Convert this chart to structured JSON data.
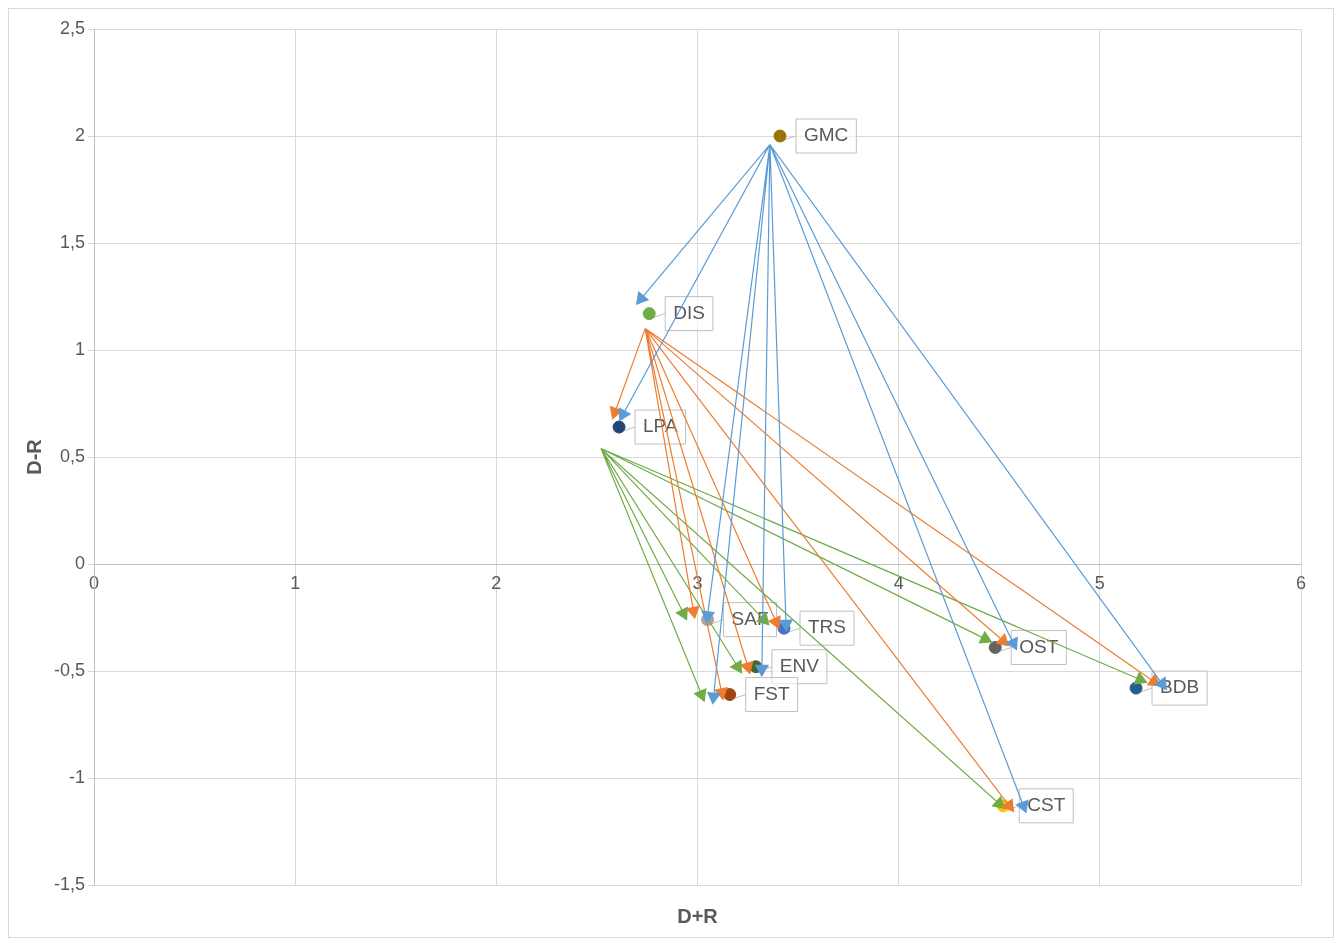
{
  "chart_data": {
    "type": "scatter",
    "xlabel": "D+R",
    "ylabel": "D-R",
    "xlim": [
      0,
      6
    ],
    "xticks": [
      0,
      1,
      2,
      3,
      4,
      5,
      6
    ],
    "ylim": [
      -1.5,
      2.5
    ],
    "yticks": [
      {
        "value": -1.5,
        "label": "-1,5"
      },
      -1,
      {
        "value": -0.5,
        "label": "-0,5"
      },
      0,
      {
        "value": 0.5,
        "label": "0,5"
      },
      1,
      {
        "value": 1.5,
        "label": "1,5"
      },
      2,
      {
        "value": 2.5,
        "label": "2,5"
      }
    ],
    "grid": true,
    "legend": false,
    "series": [
      {
        "type": "scatter",
        "marker": "circle",
        "x": [
          3.41,
          2.76,
          2.61,
          3.05,
          3.43,
          3.29,
          3.16,
          4.48,
          5.18,
          4.52
        ],
        "values": [
          2.0,
          1.17,
          0.64,
          -0.26,
          -0.3,
          -0.48,
          -0.61,
          -0.39,
          -0.58,
          -1.13
        ],
        "colors": [
          "#997300",
          "#70ad47",
          "#264478",
          "#a5a5a5",
          "#4472c4",
          "#43682b",
          "#9e480e",
          "#636363",
          "#255e91",
          "#ffc000"
        ]
      },
      {
        "type": "line",
        "marker": "triangle",
        "color": "#5b9bd5",
        "x": [
          3.36,
          2.72,
          null,
          3.36,
          2.63,
          null,
          3.36,
          3.05,
          null,
          3.36,
          3.44,
          null,
          3.36,
          3.32,
          null,
          3.36,
          3.08,
          null,
          3.36,
          4.57,
          null,
          3.36,
          5.31,
          null,
          3.36,
          4.62
        ],
        "values": [
          1.96,
          1.24,
          null,
          1.96,
          0.7,
          null,
          1.96,
          -0.24,
          null,
          1.96,
          -0.28,
          null,
          1.96,
          -0.49,
          null,
          1.96,
          -0.62,
          null,
          1.96,
          -0.37,
          null,
          1.96,
          -0.56,
          null,
          1.96,
          -1.13
        ]
      },
      {
        "type": "line",
        "marker": "triangle",
        "color": "#ed7d31",
        "x": [
          2.74,
          2.59,
          null,
          2.74,
          2.98,
          null,
          2.74,
          3.39,
          null,
          2.74,
          3.25,
          null,
          2.74,
          3.12,
          null,
          2.74,
          4.52,
          null,
          2.74,
          5.27,
          null,
          2.74,
          4.55
        ],
        "values": [
          1.1,
          0.71,
          null,
          1.1,
          -0.22,
          null,
          1.1,
          -0.27,
          null,
          1.1,
          -0.48,
          null,
          1.1,
          -0.6,
          null,
          1.1,
          -0.36,
          null,
          1.1,
          -0.55,
          null,
          1.1,
          -1.13
        ]
      },
      {
        "type": "line",
        "marker": "triangle",
        "color": "#70ad47",
        "x": [
          2.52,
          2.93,
          null,
          2.52,
          3.33,
          null,
          2.52,
          3.2,
          null,
          2.52,
          3.02,
          null,
          2.52,
          4.43,
          null,
          2.52,
          5.2,
          null,
          2.52,
          4.5
        ],
        "values": [
          0.54,
          -0.23,
          null,
          0.54,
          -0.26,
          null,
          0.54,
          -0.48,
          null,
          0.54,
          -0.61,
          null,
          0.54,
          -0.35,
          null,
          0.54,
          -0.54,
          null,
          0.54,
          -1.12
        ]
      }
    ],
    "annotations": [
      {
        "text": "GMC",
        "x": 3.41,
        "y": 2.0
      },
      {
        "text": "DIS",
        "x": 2.76,
        "y": 1.17
      },
      {
        "text": "LPA",
        "x": 2.61,
        "y": 0.64
      },
      {
        "text": "SAF",
        "x": 3.05,
        "y": -0.26
      },
      {
        "text": "TRS",
        "x": 3.43,
        "y": -0.3
      },
      {
        "text": "ENV",
        "x": 3.29,
        "y": -0.48
      },
      {
        "text": "FST",
        "x": 3.16,
        "y": -0.61
      },
      {
        "text": "OST",
        "x": 4.48,
        "y": -0.39
      },
      {
        "text": "BDB",
        "x": 5.18,
        "y": -0.58
      },
      {
        "text": "CST",
        "x": 4.52,
        "y": -1.13
      }
    ]
  }
}
